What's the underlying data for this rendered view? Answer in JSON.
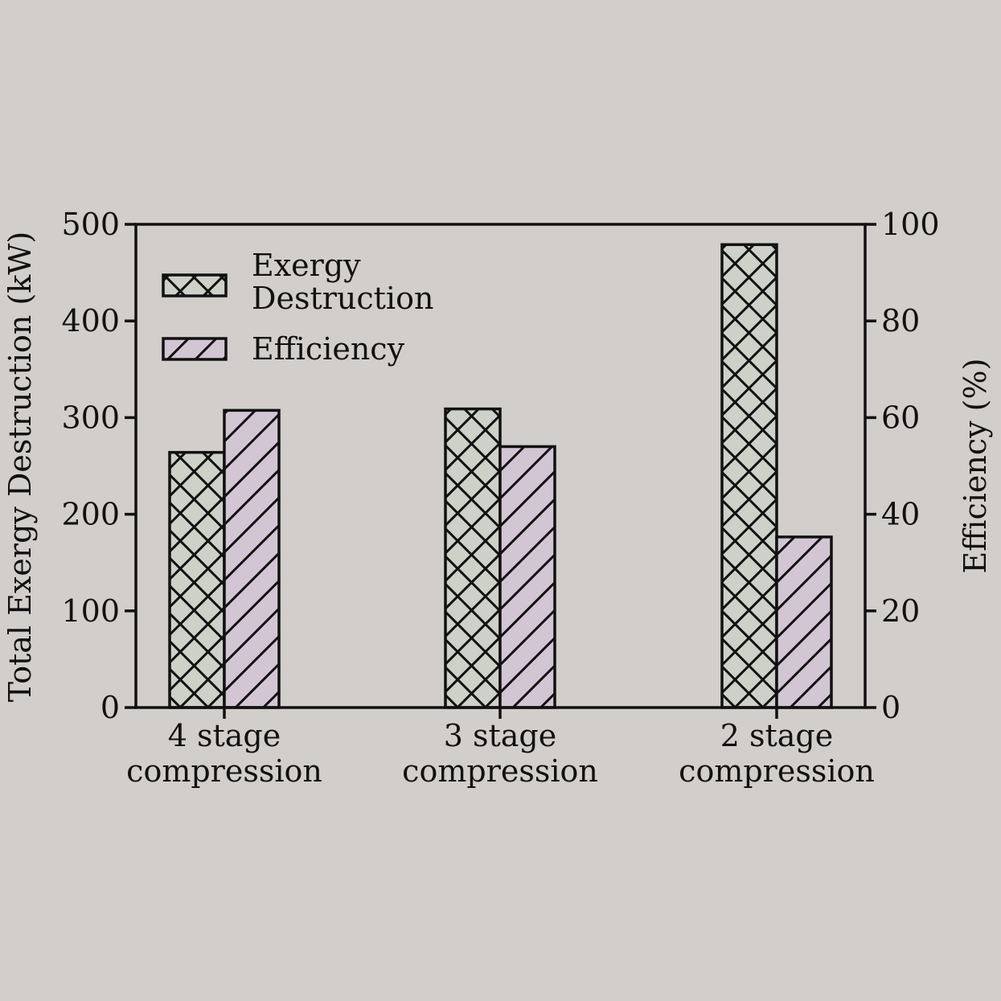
{
  "chart_data": {
    "type": "bar",
    "categories": [
      "4 stage\ncompression",
      "3 stage\ncompression",
      "2 stage\ncompression"
    ],
    "series": [
      {
        "name": "Exergy\nDestruction",
        "axis": "left",
        "values": [
          264,
          309,
          479
        ],
        "color": "#cdd1c7",
        "hatch": "crosshatch"
      },
      {
        "name": "Efficiency",
        "axis": "right",
        "values": [
          61.5,
          54,
          35.3
        ],
        "color": "#d3c6d4",
        "hatch": "diagonal"
      }
    ],
    "ylabel": "Total Exergy Destruction (kW)",
    "y2label": "Efficiency (%)",
    "ylim": [
      0,
      500
    ],
    "y2lim": [
      0,
      100
    ],
    "yticks": [
      0,
      100,
      200,
      300,
      400,
      500
    ],
    "y2ticks": [
      0,
      20,
      40,
      60,
      80,
      100
    ],
    "legend_position": "top-left",
    "grid": false
  },
  "colors": {
    "background": "#d1cecb",
    "axis": "#111111"
  }
}
